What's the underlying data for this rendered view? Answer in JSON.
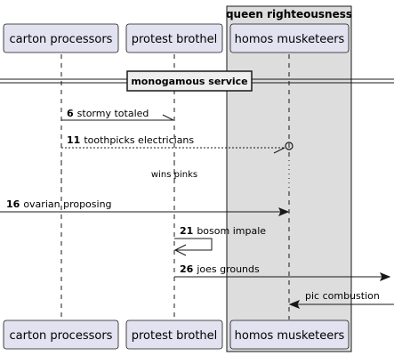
{
  "box": {
    "title": "queen righteousness"
  },
  "participants": [
    {
      "id": "carton",
      "label": "carton processors"
    },
    {
      "id": "protest",
      "label": "protest brothel"
    },
    {
      "id": "homos",
      "label": "homos musketeers"
    }
  ],
  "divider": {
    "label": "monogamous service"
  },
  "delay": {
    "label": "wins pinks"
  },
  "messages": [
    {
      "number": "6",
      "text": "stormy totaled",
      "from": "carton",
      "to": "protest",
      "style": "solid",
      "head": "half-lower"
    },
    {
      "number": "11",
      "text": "toothpicks electricians",
      "from": "carton",
      "to": "homos",
      "style": "dashed",
      "head": "half-lower-circle"
    },
    {
      "number": "16",
      "text": "ovarian proposing",
      "from": "left-edge",
      "to": "homos",
      "style": "solid",
      "head": "filled"
    },
    {
      "number": "21",
      "text": "bosom impale",
      "from": "protest",
      "to": "protest",
      "style": "solid",
      "head": "open"
    },
    {
      "number": "26",
      "text": "joes grounds",
      "from": "protest",
      "to": "right-edge",
      "style": "solid",
      "head": "filled"
    },
    {
      "number": "",
      "text": "pic combustion",
      "from": "right-edge",
      "to": "homos",
      "style": "solid",
      "head": "filled"
    }
  ],
  "colors": {
    "participant_fill": "#E2E2F0",
    "participant_border": "#181818",
    "box_fill": "#DDDDDD",
    "line": "#181818"
  }
}
